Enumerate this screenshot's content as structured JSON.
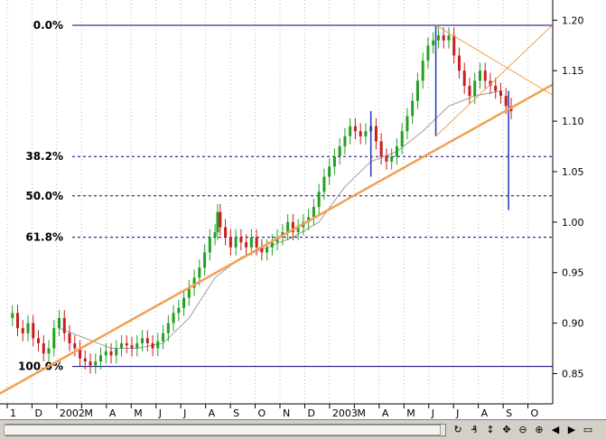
{
  "chart_data": {
    "type": "candlestick",
    "title": "",
    "xlabel": "",
    "ylabel": "",
    "y_axis_position": "right",
    "ylim": [
      0.82,
      1.22
    ],
    "y_ticks": [
      "1.20",
      "1.15",
      "1.10",
      "1.05",
      "1.00",
      "0.95",
      "0.90",
      "0.85"
    ],
    "y_tick_values": [
      1.2,
      1.15,
      1.1,
      1.05,
      1.0,
      0.95,
      0.9,
      0.85
    ],
    "x_ticks": [
      "1",
      "D",
      "2002",
      "M",
      "A",
      "M",
      "J",
      "J",
      "A",
      "S",
      "O",
      "N",
      "D",
      "2003",
      "M",
      "A",
      "M",
      "J",
      "J",
      "A",
      "S",
      "O"
    ],
    "grid": true,
    "fibonacci_levels": [
      {
        "label": "0.0%",
        "value": 1.195
      },
      {
        "label": "38.2%",
        "value": 1.065
      },
      {
        "label": "50.0%",
        "value": 1.026
      },
      {
        "label": "61.8%",
        "value": 0.985
      },
      {
        "label": "100.0%",
        "value": 0.857
      }
    ],
    "price_path": [
      [
        0,
        0.905
      ],
      [
        2,
        0.91
      ],
      [
        4,
        0.895
      ],
      [
        6,
        0.89
      ],
      [
        8,
        0.9
      ],
      [
        10,
        0.885
      ],
      [
        12,
        0.88
      ],
      [
        14,
        0.87
      ],
      [
        16,
        0.875
      ],
      [
        18,
        0.895
      ],
      [
        20,
        0.905
      ],
      [
        22,
        0.89
      ],
      [
        24,
        0.88
      ],
      [
        26,
        0.875
      ],
      [
        28,
        0.865
      ],
      [
        30,
        0.862
      ],
      [
        32,
        0.858
      ],
      [
        34,
        0.862
      ],
      [
        36,
        0.868
      ],
      [
        38,
        0.872
      ],
      [
        40,
        0.868
      ],
      [
        42,
        0.875
      ],
      [
        44,
        0.88
      ],
      [
        46,
        0.878
      ],
      [
        48,
        0.875
      ],
      [
        50,
        0.88
      ],
      [
        52,
        0.885
      ],
      [
        54,
        0.88
      ],
      [
        56,
        0.875
      ],
      [
        58,
        0.882
      ],
      [
        60,
        0.89
      ],
      [
        62,
        0.9
      ],
      [
        64,
        0.91
      ],
      [
        66,
        0.915
      ],
      [
        68,
        0.925
      ],
      [
        70,
        0.935
      ],
      [
        72,
        0.945
      ],
      [
        74,
        0.955
      ],
      [
        76,
        0.97
      ],
      [
        78,
        0.985
      ],
      [
        80,
        0.99
      ],
      [
        81,
        1.01
      ],
      [
        82,
        0.995
      ],
      [
        84,
        0.985
      ],
      [
        86,
        0.975
      ],
      [
        88,
        0.985
      ],
      [
        90,
        0.98
      ],
      [
        92,
        0.975
      ],
      [
        94,
        0.985
      ],
      [
        96,
        0.975
      ],
      [
        98,
        0.97
      ],
      [
        100,
        0.975
      ],
      [
        102,
        0.98
      ],
      [
        104,
        0.985
      ],
      [
        106,
        0.99
      ],
      [
        108,
        1.0
      ],
      [
        110,
        0.99
      ],
      [
        112,
        0.995
      ],
      [
        114,
        1.0
      ],
      [
        116,
        1.005
      ],
      [
        118,
        1.015
      ],
      [
        120,
        1.03
      ],
      [
        122,
        1.045
      ],
      [
        124,
        1.055
      ],
      [
        126,
        1.065
      ],
      [
        128,
        1.075
      ],
      [
        130,
        1.085
      ],
      [
        132,
        1.095
      ],
      [
        134,
        1.09
      ],
      [
        136,
        1.085
      ],
      [
        138,
        1.09
      ],
      [
        140,
        1.095
      ],
      [
        142,
        1.08
      ],
      [
        144,
        1.065
      ],
      [
        146,
        1.06
      ],
      [
        148,
        1.065
      ],
      [
        150,
        1.075
      ],
      [
        152,
        1.09
      ],
      [
        154,
        1.105
      ],
      [
        156,
        1.12
      ],
      [
        158,
        1.14
      ],
      [
        160,
        1.16
      ],
      [
        162,
        1.175
      ],
      [
        164,
        1.18
      ],
      [
        166,
        1.185
      ],
      [
        168,
        1.18
      ],
      [
        170,
        1.185
      ],
      [
        172,
        1.165
      ],
      [
        174,
        1.15
      ],
      [
        176,
        1.135
      ],
      [
        178,
        1.125
      ],
      [
        180,
        1.14
      ],
      [
        182,
        1.15
      ],
      [
        184,
        1.14
      ],
      [
        186,
        1.135
      ],
      [
        188,
        1.13
      ],
      [
        190,
        1.125
      ],
      [
        192,
        1.115
      ],
      [
        194,
        1.11
      ]
    ],
    "moving_average": [
      [
        20,
        0.895
      ],
      [
        30,
        0.885
      ],
      [
        40,
        0.875
      ],
      [
        50,
        0.875
      ],
      [
        60,
        0.88
      ],
      [
        70,
        0.905
      ],
      [
        80,
        0.945
      ],
      [
        90,
        0.965
      ],
      [
        100,
        0.975
      ],
      [
        110,
        0.985
      ],
      [
        120,
        1.0
      ],
      [
        130,
        1.035
      ],
      [
        140,
        1.06
      ],
      [
        150,
        1.07
      ],
      [
        160,
        1.09
      ],
      [
        170,
        1.115
      ],
      [
        180,
        1.125
      ],
      [
        190,
        1.13
      ]
    ],
    "spikes": [
      {
        "x": 140,
        "low": 1.045,
        "high": 1.11
      },
      {
        "x": 165,
        "low": 1.085,
        "high": 1.195
      },
      {
        "x": 193,
        "low": 1.012,
        "high": 1.13
      }
    ],
    "trendlines": [
      {
        "x1": -10,
        "y1": 0.82,
        "x2": 230,
        "y2": 1.165
      },
      {
        "x1": 165,
        "y1": 1.195,
        "x2": 230,
        "y2": 1.095
      },
      {
        "x1": 165,
        "y1": 1.085,
        "x2": 220,
        "y2": 1.22
      }
    ],
    "colors": {
      "background": "#ffffff",
      "up": "#22a022",
      "down": "#c81e1e",
      "trend": "#f2a055",
      "fib_line": "#00007a",
      "grid": "#b8b8b8",
      "ma": "#a0a0a0",
      "spike": "#2233bb"
    }
  },
  "toolbar": {
    "icons": [
      "rotate-icon",
      "currency-icon",
      "pan-vertical-icon",
      "pan-icon",
      "zoom-out-icon",
      "zoom-in-icon",
      "scroll-left-icon",
      "scroll-right-icon",
      "minimize-icon"
    ],
    "glyphs": [
      "↻",
      "₰",
      "↕",
      "✥",
      "⊖",
      "⊕",
      "◀",
      "▶",
      "▭"
    ]
  }
}
